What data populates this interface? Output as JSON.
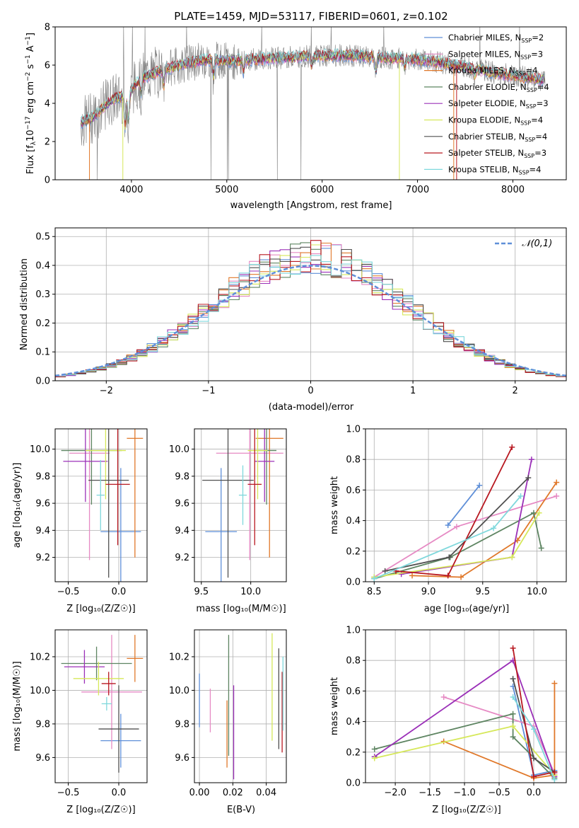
{
  "colors": {
    "grid": "#b0b0b0",
    "data_spectrum": "#808080"
  },
  "chart_data": [
    {
      "id": "spectrum",
      "type": "line",
      "title": "PLATE=1459, MJD=53117, FIBERID=0601, z=0.102",
      "xlabel": "wavelength [Angstrom, rest frame]",
      "ylabel": "Flux [f",
      "ylabel_parts": [
        "Flux [f",
        "λ",
        "10",
        "−17",
        " erg cm",
        "−2",
        " s",
        "−1",
        " A",
        "−1",
        "]"
      ],
      "xlim": [
        3200,
        8560
      ],
      "ylim": [
        0,
        8
      ],
      "xticks": [
        "4000",
        "5000",
        "6000",
        "7000",
        "8000"
      ],
      "yticks": [
        "0",
        "2",
        "4",
        "6",
        "8"
      ],
      "legend_position": "top-right",
      "series": [
        {
          "name": "Chabrier MILES",
          "nssp": "2",
          "color": "#5f8fd8"
        },
        {
          "name": "Salpeter MILES",
          "nssp": "3",
          "color": "#e68ac4"
        },
        {
          "name": "Kroupa MILES",
          "nssp": "4",
          "color": "#e0782a"
        },
        {
          "name": "Chabrier ELODIE",
          "nssp": "4",
          "color": "#5e8562"
        },
        {
          "name": "Salpeter ELODIE",
          "nssp": "3",
          "color": "#9b30b8"
        },
        {
          "name": "Kroupa ELODIE",
          "nssp": "4",
          "color": "#d6e85a"
        },
        {
          "name": "Chabrier STELIB",
          "nssp": "4",
          "color": "#505050"
        },
        {
          "name": "Salpeter STELIB",
          "nssp": "3",
          "color": "#b81820"
        },
        {
          "name": "Kroupa STELIB",
          "nssp": "4",
          "color": "#7fd8dc"
        }
      ],
      "continuum": {
        "x": [
          3450,
          3600,
          3800,
          3950,
          4100,
          4300,
          4500,
          4800,
          5000,
          5300,
          5600,
          6000,
          6300,
          6600,
          7000,
          7400,
          7800,
          8200,
          8350
        ],
        "y": [
          2.9,
          3.3,
          4.2,
          4.4,
          5.3,
          5.7,
          6.0,
          6.3,
          6.2,
          6.3,
          6.4,
          6.5,
          6.5,
          6.4,
          6.3,
          6.0,
          5.6,
          5.3,
          5.2
        ]
      }
    },
    {
      "id": "residuals",
      "type": "histogram",
      "xlabel": "(data-model)/error",
      "ylabel": "Normed distribution",
      "xlim": [
        -2.5,
        2.5
      ],
      "ylim": [
        0,
        0.53
      ],
      "xticks": [
        "−2",
        "−1",
        "0",
        "1",
        "2"
      ],
      "yticks": [
        "0.0",
        "0.1",
        "0.2",
        "0.3",
        "0.4",
        "0.5"
      ],
      "legend": "𝒩(0,1)",
      "legend_position": "top-right",
      "bin_width": 0.1
    },
    {
      "id": "age-vs-Z",
      "type": "errorbar",
      "xlabel": "Z [log₁₀(Z/Z☉)]",
      "ylabel": "age  [log₁₀(age/yr)]",
      "xlim": [
        -0.63,
        0.28
      ],
      "ylim": [
        9.02,
        10.15
      ],
      "xticks": [
        "−0.5",
        "0.0"
      ],
      "yticks": [
        "9.2",
        "9.4",
        "9.6",
        "9.8",
        "10.0"
      ],
      "points": [
        {
          "x": 0.02,
          "y": 9.39,
          "xe": 0.2,
          "ye": 0.47
        },
        {
          "x": -0.29,
          "y": 9.97,
          "xe": 0.2,
          "ye": 0.79
        },
        {
          "x": 0.16,
          "y": 10.08,
          "xe": 0.08,
          "ye": 0.88
        },
        {
          "x": -0.27,
          "y": 9.99,
          "xe": 0.3,
          "ye": 0.4
        },
        {
          "x": -0.33,
          "y": 9.91,
          "xe": 0.22,
          "ye": 0.3
        },
        {
          "x": -0.13,
          "y": 9.99,
          "xe": 0.2,
          "ye": 0.36
        },
        {
          "x": -0.1,
          "y": 9.77,
          "xe": 0.2,
          "ye": 0.72
        },
        {
          "x": -0.01,
          "y": 9.74,
          "xe": 0.12,
          "ye": 0.45
        },
        {
          "x": -0.18,
          "y": 9.66,
          "xe": 0.04,
          "ye": 0.26
        }
      ]
    },
    {
      "id": "age-vs-mass",
      "type": "errorbar",
      "xlabel": "mass [log₁₀(M/M☉)]",
      "ylabel": "",
      "xlim": [
        9.43,
        10.36
      ],
      "ylim": [
        9.02,
        10.15
      ],
      "xticks": [
        "9.5",
        "10.0"
      ],
      "yticks": [
        "9.2",
        "9.4",
        "9.6",
        "9.8",
        "10.0"
      ],
      "points": [
        {
          "x": 9.7,
          "y": 9.39,
          "xe": 0.16,
          "ye": 0.47
        },
        {
          "x": 9.99,
          "y": 9.97,
          "xe": 0.34,
          "ye": 0.79
        },
        {
          "x": 10.19,
          "y": 10.08,
          "xe": 0.14,
          "ye": 0.88
        },
        {
          "x": 10.16,
          "y": 9.99,
          "xe": 0.1,
          "ye": 0.4
        },
        {
          "x": 10.14,
          "y": 9.91,
          "xe": 0.1,
          "ye": 0.3
        },
        {
          "x": 10.07,
          "y": 9.99,
          "xe": 0.1,
          "ye": 0.36
        },
        {
          "x": 9.77,
          "y": 9.77,
          "xe": 0.26,
          "ye": 0.72
        },
        {
          "x": 10.04,
          "y": 9.74,
          "xe": 0.07,
          "ye": 0.45
        },
        {
          "x": 9.92,
          "y": 9.66,
          "xe": 0.04,
          "ye": 0.22
        }
      ]
    },
    {
      "id": "massweight-vs-age",
      "type": "line",
      "xlabel": "age  [log₁₀(age/yr)]",
      "ylabel": "mass weight",
      "xlim": [
        8.42,
        10.27
      ],
      "ylim": [
        0,
        1.0
      ],
      "xticks": [
        "8.5",
        "9.0",
        "9.5",
        "10.0"
      ],
      "yticks": [
        "0.0",
        "0.2",
        "0.4",
        "0.6",
        "0.8",
        "1.0"
      ],
      "series": [
        {
          "x": [
            9.18,
            9.47
          ],
          "y": [
            0.37,
            0.63
          ]
        },
        {
          "x": [
            8.5,
            9.26,
            10.18
          ],
          "y": [
            0.03,
            0.36,
            0.56
          ]
        },
        {
          "x": [
            8.85,
            9.3,
            9.82,
            10.18
          ],
          "y": [
            0.04,
            0.03,
            0.27,
            0.65
          ]
        },
        {
          "x": [
            8.5,
            9.2,
            9.97,
            10.04
          ],
          "y": [
            0.02,
            0.16,
            0.45,
            0.22
          ]
        },
        {
          "x": [
            8.75,
            9.77,
            9.95
          ],
          "y": [
            0.05,
            0.16,
            0.8
          ]
        },
        {
          "x": [
            8.5,
            9.77,
            10.02
          ],
          "y": [
            0.03,
            0.16,
            0.45
          ]
        },
        {
          "x": [
            8.6,
            9.19,
            9.92
          ],
          "y": [
            0.07,
            0.16,
            0.68
          ]
        },
        {
          "x": [
            8.7,
            9.18,
            9.77
          ],
          "y": [
            0.07,
            0.04,
            0.88
          ]
        },
        {
          "x": [
            8.5,
            9.6,
            9.85
          ],
          "y": [
            0.02,
            0.35,
            0.56
          ]
        }
      ]
    },
    {
      "id": "mass-vs-Z",
      "type": "errorbar",
      "xlabel": "Z [log₁₀(Z/Z☉)]",
      "ylabel": "mass [log₁₀(M/M☉)]",
      "xlim": [
        -0.63,
        0.28
      ],
      "ylim": [
        9.45,
        10.36
      ],
      "xticks": [
        "−0.5",
        "0.0"
      ],
      "yticks": [
        "9.6",
        "9.8",
        "10.0",
        "10.2"
      ],
      "points": [
        {
          "x": 0.02,
          "y": 9.7,
          "xe": 0.2,
          "ye": 0.16
        },
        {
          "x": -0.07,
          "y": 9.99,
          "xe": 0.3,
          "ye": 0.34
        },
        {
          "x": 0.16,
          "y": 10.19,
          "xe": 0.08,
          "ye": 0.14
        },
        {
          "x": -0.22,
          "y": 10.16,
          "xe": 0.35,
          "ye": 0.1
        },
        {
          "x": -0.34,
          "y": 10.14,
          "xe": 0.2,
          "ye": 0.1
        },
        {
          "x": -0.2,
          "y": 10.07,
          "xe": 0.25,
          "ye": 0.1
        },
        {
          "x": 0.0,
          "y": 9.77,
          "xe": 0.2,
          "ye": 0.26
        },
        {
          "x": -0.1,
          "y": 10.04,
          "xe": 0.07,
          "ye": 0.07
        },
        {
          "x": -0.12,
          "y": 9.92,
          "xe": 0.05,
          "ye": 0.04
        }
      ]
    },
    {
      "id": "mass-vs-EBV",
      "type": "errorbar",
      "xlabel": "E(B-V)",
      "ylabel": "",
      "xlim": [
        -0.003,
        0.052
      ],
      "ylim": [
        9.45,
        10.36
      ],
      "xticks": [
        "0.00",
        "0.02",
        "0.04"
      ],
      "yticks": [
        "9.6",
        "9.8",
        "10.0",
        "10.2"
      ],
      "points": [
        {
          "x": 0.0,
          "y": 9.94,
          "ye": 0.16
        },
        {
          "x": 0.0065,
          "y": 9.88,
          "ye": 0.13
        },
        {
          "x": 0.0165,
          "y": 9.74,
          "ye": 0.2
        },
        {
          "x": 0.0175,
          "y": 9.97,
          "ye": 0.36
        },
        {
          "x": 0.0205,
          "y": 9.75,
          "ye": 0.28
        },
        {
          "x": 0.0435,
          "y": 10.02,
          "ye": 0.32
        },
        {
          "x": 0.0475,
          "y": 9.95,
          "ye": 0.3
        },
        {
          "x": 0.0495,
          "y": 9.87,
          "ye": 0.24
        },
        {
          "x": 0.05,
          "y": 9.98,
          "ye": 0.22
        }
      ]
    },
    {
      "id": "massweight-vs-Z",
      "type": "line",
      "xlabel": "Z [log₁₀(Z/Z☉)]",
      "ylabel": "mass weight",
      "xlim": [
        -2.43,
        0.47
      ],
      "ylim": [
        0,
        1.0
      ],
      "xticks": [
        "−2.0",
        "−1.5",
        "−1.0",
        "−0.5",
        "0.0"
      ],
      "yticks": [
        "0.0",
        "0.2",
        "0.4",
        "0.6",
        "0.8",
        "1.0"
      ],
      "series": [
        {
          "x": [
            -0.3,
            0.0,
            0.3
          ],
          "y": [
            0.63,
            0.05,
            0.08
          ]
        },
        {
          "x": [
            -1.3,
            -0.0,
            0.3
          ],
          "y": [
            0.56,
            0.37,
            0.06
          ]
        },
        {
          "x": [
            -1.3,
            0.0,
            0.3,
            0.3
          ],
          "y": [
            0.27,
            0.03,
            0.05,
            0.65
          ]
        },
        {
          "x": [
            -2.3,
            -0.3,
            -0.3,
            0.3
          ],
          "y": [
            0.22,
            0.45,
            0.3,
            0.03
          ]
        },
        {
          "x": [
            -2.3,
            -0.3,
            0.3
          ],
          "y": [
            0.17,
            0.8,
            0.04
          ]
        },
        {
          "x": [
            -2.3,
            -0.3,
            0.3
          ],
          "y": [
            0.16,
            0.37,
            0.05
          ]
        },
        {
          "x": [
            -0.3,
            0.0,
            0.3
          ],
          "y": [
            0.68,
            0.16,
            0.07
          ]
        },
        {
          "x": [
            -0.3,
            0.0,
            0.3
          ],
          "y": [
            0.88,
            0.04,
            0.07
          ]
        },
        {
          "x": [
            -0.3,
            0.0,
            0.3
          ],
          "y": [
            0.56,
            0.35,
            0.02
          ]
        }
      ]
    }
  ]
}
